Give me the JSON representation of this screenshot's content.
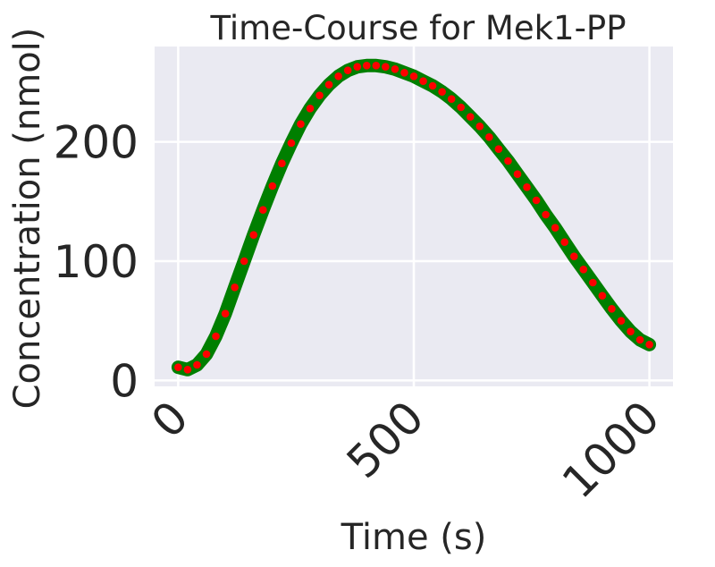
{
  "chart_data": {
    "type": "line",
    "title": "Time-Course for Mek1-PP",
    "xlabel": "Time (s)",
    "ylabel": "Concentration (nmol)",
    "xlim": [
      -50,
      1050
    ],
    "ylim": [
      -5,
      280
    ],
    "grid": true,
    "xticks": [
      0,
      500,
      1000
    ],
    "xtick_labels": [
      "0",
      "500",
      "1000"
    ],
    "yticks": [
      0,
      100,
      200
    ],
    "ytick_labels": [
      "0",
      "100",
      "200"
    ],
    "colors": {
      "background": "#eaeaf2",
      "line": "#007f00",
      "markers": "#ff0000",
      "text": "#262626"
    },
    "series": [
      {
        "style": "solid line",
        "x": [
          0,
          20,
          40,
          60,
          80,
          100,
          120,
          140,
          160,
          180,
          200,
          220,
          240,
          260,
          280,
          300,
          320,
          340,
          360,
          380,
          400,
          420,
          440,
          460,
          480,
          500,
          520,
          540,
          560,
          580,
          600,
          620,
          640,
          660,
          680,
          700,
          720,
          740,
          760,
          780,
          800,
          820,
          840,
          860,
          880,
          900,
          920,
          940,
          960,
          980,
          1000
        ],
        "y": [
          11,
          9,
          13,
          22,
          37,
          56,
          78,
          100,
          122,
          143,
          163,
          182,
          199,
          215,
          228,
          239,
          248,
          255,
          260,
          263,
          264,
          264,
          263,
          261,
          258,
          255,
          251,
          247,
          242,
          236,
          229,
          221,
          213,
          204,
          194,
          184,
          173,
          162,
          151,
          139,
          128,
          116,
          104,
          93,
          82,
          71,
          60,
          50,
          41,
          34,
          30
        ]
      },
      {
        "style": "dotted markers",
        "x": [
          0,
          20,
          40,
          60,
          80,
          100,
          120,
          140,
          160,
          180,
          200,
          220,
          240,
          260,
          280,
          300,
          320,
          340,
          360,
          380,
          400,
          420,
          440,
          460,
          480,
          500,
          520,
          540,
          560,
          580,
          600,
          620,
          640,
          660,
          680,
          700,
          720,
          740,
          760,
          780,
          800,
          820,
          840,
          860,
          880,
          900,
          920,
          940,
          960,
          980,
          1000
        ],
        "y": [
          11,
          9,
          13,
          22,
          37,
          56,
          78,
          100,
          122,
          143,
          163,
          182,
          199,
          215,
          228,
          239,
          248,
          255,
          260,
          263,
          264,
          264,
          263,
          261,
          258,
          255,
          251,
          247,
          242,
          236,
          229,
          221,
          213,
          204,
          194,
          184,
          173,
          162,
          151,
          139,
          128,
          116,
          104,
          93,
          82,
          71,
          60,
          50,
          41,
          34,
          30
        ]
      }
    ]
  }
}
